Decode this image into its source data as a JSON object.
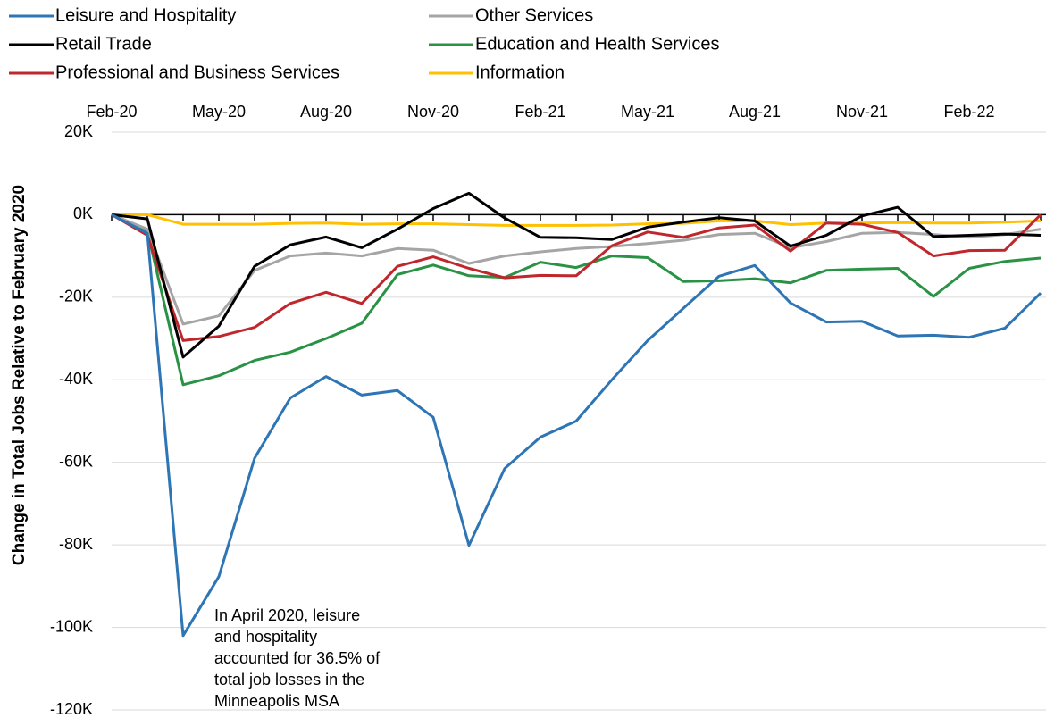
{
  "chart_data": {
    "type": "line",
    "y_label": "Change in Total Jobs Relative to February 2020",
    "annotation": [
      "In April 2020, leisure",
      "and hospitality",
      "accounted for 36.5% of",
      "total job losses in the",
      "Minneapolis MSA"
    ],
    "categories": [
      "Feb-20",
      null,
      null,
      "May-20",
      null,
      null,
      "Aug-20",
      null,
      null,
      "Nov-20",
      null,
      null,
      "Feb-21",
      null,
      null,
      "May-21",
      null,
      null,
      "Aug-21",
      null,
      null,
      "Nov-21",
      null,
      null,
      "Feb-22",
      null,
      null
    ],
    "ylim": [
      -120,
      20
    ],
    "yticks": [
      {
        "value": 20,
        "label": "20K"
      },
      {
        "value": 0,
        "label": "0K"
      },
      {
        "value": -20,
        "label": "-20K"
      },
      {
        "value": -40,
        "label": "-40K"
      },
      {
        "value": -60,
        "label": "-60K"
      },
      {
        "value": -80,
        "label": "-80K"
      },
      {
        "value": -100,
        "label": "-100K"
      },
      {
        "value": -120,
        "label": "-120K"
      }
    ],
    "grid": true,
    "series": [
      {
        "name": "Leisure and Hospitality",
        "color": "#2e75b6",
        "values": [
          0,
          -4.5,
          -102,
          -87.7,
          -59,
          -44.4,
          -39.2,
          -43.7,
          -42.6,
          -49.1,
          -80.1,
          -61.5,
          -53.9,
          -50,
          -40,
          -30.5,
          -22.7,
          -14.9,
          -12.3,
          -21.4,
          -26,
          -25.8,
          -29.4,
          -29.2,
          -29.7,
          -27.5,
          -19
        ]
      },
      {
        "name": "Retail Trade",
        "color": "#000000",
        "values": [
          0,
          -1,
          -34.5,
          -27,
          -12.5,
          -7.3,
          -5.4,
          -8,
          -3.5,
          1.5,
          5.2,
          -0.8,
          -5.5,
          -5.6,
          -6,
          -3,
          -1.8,
          -0.7,
          -1.5,
          -7.6,
          -5,
          -0.3,
          1.8,
          -5.3,
          -5,
          -4.7,
          -5
        ]
      },
      {
        "name": "Professional and Business Services",
        "color": "#c0272d",
        "values": [
          0,
          -5,
          -30.5,
          -29.5,
          -27.3,
          -21.5,
          -18.8,
          -21.5,
          -12.5,
          -10.2,
          -13,
          -15.3,
          -14.7,
          -14.8,
          -7.5,
          -4.2,
          -5.5,
          -3.2,
          -2.5,
          -8.8,
          -2,
          -2.3,
          -4.3,
          -10,
          -8.7,
          -8.6,
          0
        ]
      },
      {
        "name": "Other Services",
        "color": "#a5a5a5",
        "values": [
          0,
          -3.5,
          -26.5,
          -24.5,
          -13.5,
          -10,
          -9.3,
          -10,
          -8.2,
          -8.6,
          -11.8,
          -10,
          -9,
          -8.2,
          -7.7,
          -7,
          -6.2,
          -4.8,
          -4.5,
          -8,
          -6.5,
          -4.5,
          -4.3,
          -4.8,
          -5.5,
          -4.8,
          -3.5
        ]
      },
      {
        "name": "Education and Health Services",
        "color": "#2a9245",
        "values": [
          0,
          -4,
          -41.2,
          -39,
          -35.3,
          -33.3,
          -30,
          -26.3,
          -14.5,
          -12.2,
          -14.8,
          -15.2,
          -11.5,
          -12.8,
          -10,
          -10.4,
          -16.2,
          -16,
          -15.5,
          -16.5,
          -13.5,
          -13.2,
          -13,
          -19.8,
          -13,
          -11.3,
          -10.5
        ]
      },
      {
        "name": "Information",
        "color": "#ffc000",
        "values": [
          0,
          0,
          -2.3,
          -2.3,
          -2.3,
          -2.1,
          -2,
          -2.3,
          -2.2,
          -2.2,
          -2.4,
          -2.6,
          -2.6,
          -2.6,
          -2.5,
          -2.2,
          -2.1,
          -1.5,
          -1.5,
          -2.4,
          -2,
          -2,
          -1.9,
          -2,
          -2,
          -1.8,
          -1.5
        ]
      }
    ]
  }
}
